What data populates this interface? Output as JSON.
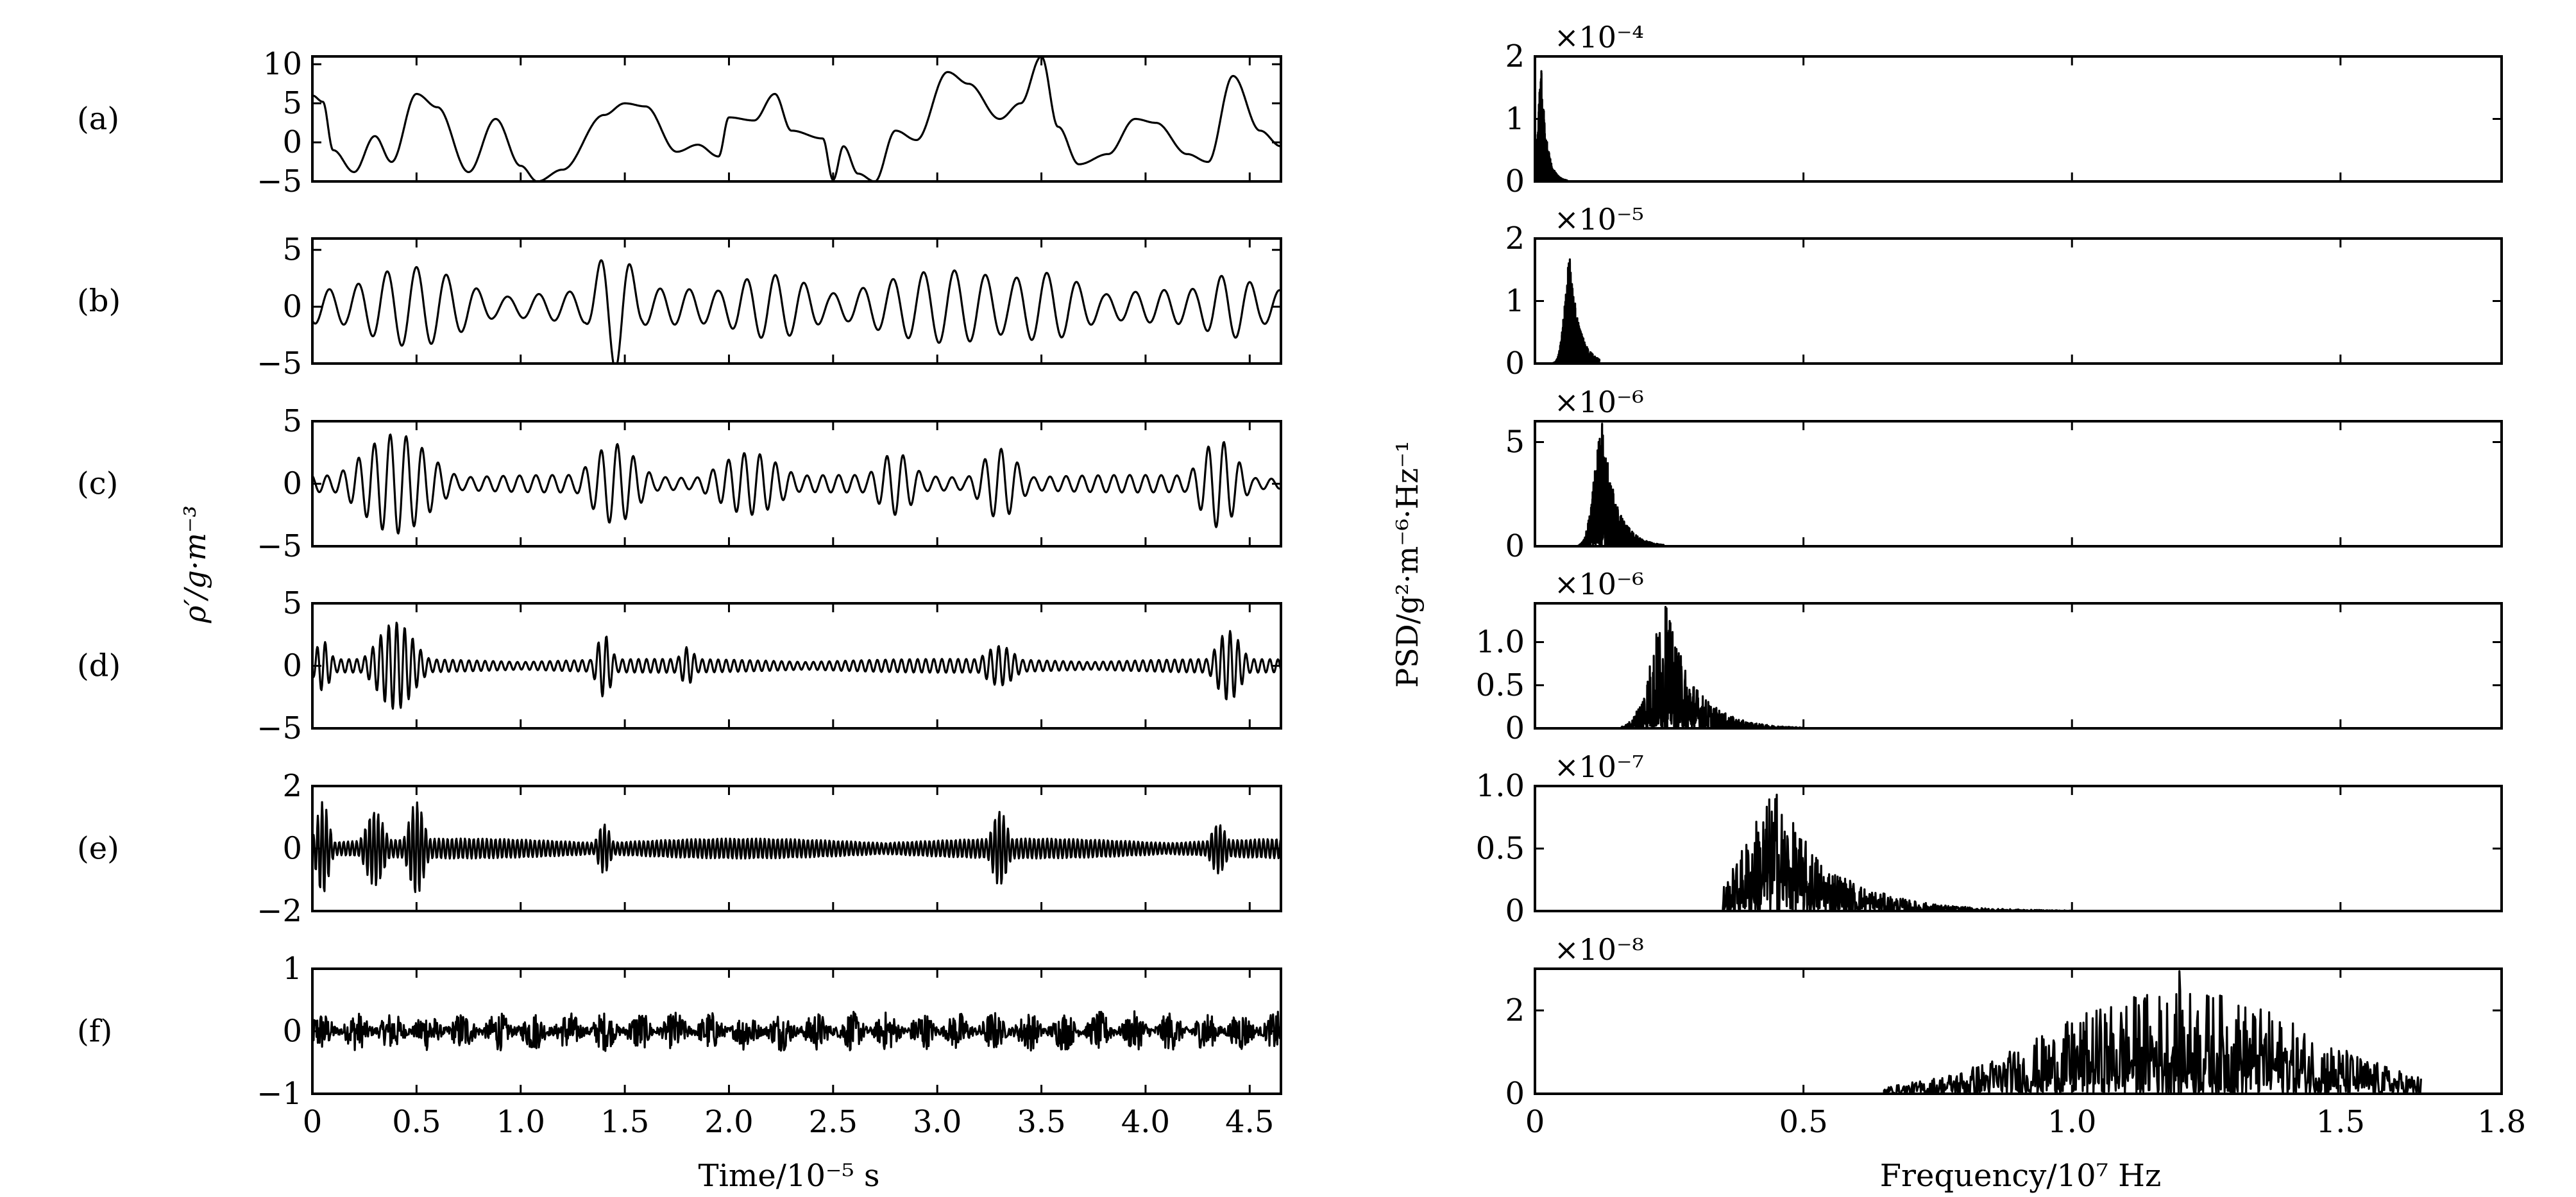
{
  "figure": {
    "left_ylabel": "ρ′/g·m⁻³",
    "left_xlabel": "Time/10⁻⁵ s",
    "right_ylabel": "PSD/g²·m⁻⁶·Hz⁻¹",
    "right_xlabel": "Frequency/10⁷ Hz",
    "panel_labels": [
      "(a)",
      "(b)",
      "(c)",
      "(d)",
      "(e)",
      "(f)"
    ]
  },
  "chart_data": [
    {
      "type": "line",
      "label": "(a)",
      "x_range": [
        0,
        4.65
      ],
      "ylim": [
        -5,
        11
      ],
      "yticks": [
        "10",
        "5",
        "0",
        "−5"
      ],
      "ytick_values": [
        10,
        5,
        0,
        -5
      ],
      "series": [
        {
          "keypoints": [
            [
              0,
              6
            ],
            [
              0.05,
              5.2
            ],
            [
              0.1,
              -1
            ],
            [
              0.2,
              -3.8
            ],
            [
              0.3,
              0.8
            ],
            [
              0.38,
              -2.5
            ],
            [
              0.5,
              6.2
            ],
            [
              0.6,
              4.5
            ],
            [
              0.75,
              -3.8
            ],
            [
              0.88,
              3
            ],
            [
              1.0,
              -3
            ],
            [
              1.08,
              -5
            ],
            [
              1.2,
              -3.5
            ],
            [
              1.4,
              3.5
            ],
            [
              1.5,
              5
            ],
            [
              1.6,
              4.6
            ],
            [
              1.75,
              -1.2
            ],
            [
              1.85,
              -0.3
            ],
            [
              1.95,
              -1.8
            ],
            [
              2.0,
              3.2
            ],
            [
              2.12,
              2.8
            ],
            [
              2.22,
              6.2
            ],
            [
              2.3,
              1.5
            ],
            [
              2.45,
              0.5
            ],
            [
              2.5,
              -4.8
            ],
            [
              2.55,
              -0.5
            ],
            [
              2.62,
              -4
            ],
            [
              2.7,
              -5
            ],
            [
              2.8,
              1.5
            ],
            [
              2.9,
              0.3
            ],
            [
              3.05,
              9
            ],
            [
              3.15,
              7.5
            ],
            [
              3.3,
              3
            ],
            [
              3.4,
              5
            ],
            [
              3.5,
              11
            ],
            [
              3.58,
              2
            ],
            [
              3.68,
              -2.8
            ],
            [
              3.82,
              -1.5
            ],
            [
              3.95,
              3
            ],
            [
              4.05,
              2.5
            ],
            [
              4.2,
              -1.5
            ],
            [
              4.3,
              -2.5
            ],
            [
              4.42,
              8.5
            ],
            [
              4.55,
              1.5
            ],
            [
              4.65,
              -0.5
            ]
          ],
          "wiggle_amp": 0.3
        }
      ],
      "xaxis": "shared"
    },
    {
      "type": "line",
      "label": "(b)",
      "x_range": [
        0,
        4.65
      ],
      "ylim": [
        -5,
        6
      ],
      "yticks": [
        "5",
        "0",
        "−5"
      ],
      "ytick_values": [
        5,
        0,
        -5
      ],
      "series": [
        {
          "freq": 7.0,
          "bursts": [
            [
              0.48,
              0.35,
              3.5
            ],
            [
              1.45,
              0.12,
              5.5
            ],
            [
              2.2,
              0.3,
              2.8
            ],
            [
              3.05,
              0.5,
              3.2
            ],
            [
              3.5,
              0.3,
              3
            ],
            [
              4.4,
              0.2,
              2.8
            ]
          ],
          "base_amp": 1.6
        }
      ]
    },
    {
      "type": "line",
      "label": "(c)",
      "x_range": [
        0,
        4.65
      ],
      "ylim": [
        -5,
        5
      ],
      "yticks": [
        "5",
        "0",
        "−5"
      ],
      "ytick_values": [
        5,
        0,
        -5
      ],
      "series": [
        {
          "freq": 13.0,
          "bursts": [
            [
              0.4,
              0.22,
              4
            ],
            [
              1.45,
              0.15,
              3.2
            ],
            [
              2.1,
              0.2,
              2.5
            ],
            [
              2.8,
              0.12,
              2.5
            ],
            [
              3.3,
              0.12,
              2.8
            ],
            [
              4.35,
              0.12,
              3.5
            ]
          ],
          "base_amp": 0.7
        }
      ]
    },
    {
      "type": "line",
      "label": "(d)",
      "x_range": [
        0,
        4.65
      ],
      "ylim": [
        -5,
        5
      ],
      "yticks": [
        "5",
        "0",
        "−5"
      ],
      "ytick_values": [
        5,
        0,
        -5
      ],
      "series": [
        {
          "freq": 26.0,
          "bursts": [
            [
              0.4,
              0.12,
              3.5
            ],
            [
              0.05,
              0.05,
              2
            ],
            [
              1.4,
              0.05,
              2.5
            ],
            [
              1.8,
              0.05,
              1.5
            ],
            [
              3.3,
              0.1,
              1.6
            ],
            [
              4.4,
              0.08,
              2.8
            ]
          ],
          "base_amp": 0.55
        }
      ]
    },
    {
      "type": "line",
      "label": "(e)",
      "x_range": [
        0,
        4.65
      ],
      "ylim": [
        -2,
        2
      ],
      "yticks": [
        "2",
        "0",
        "−2"
      ],
      "ytick_values": [
        2,
        0,
        -2
      ],
      "series": [
        {
          "freq": 48.0,
          "bursts": [
            [
              0.05,
              0.04,
              1.5
            ],
            [
              0.3,
              0.06,
              1.2
            ],
            [
              0.5,
              0.05,
              1.5
            ],
            [
              1.4,
              0.04,
              0.8
            ],
            [
              3.3,
              0.05,
              1.2
            ],
            [
              4.35,
              0.05,
              0.8
            ]
          ],
          "base_amp": 0.32
        }
      ]
    },
    {
      "type": "line",
      "label": "(f)",
      "x_range": [
        0,
        4.65
      ],
      "ylim": [
        -1,
        1
      ],
      "yticks": [
        "1",
        "0",
        "−1"
      ],
      "ytick_values": [
        1,
        0,
        -1
      ],
      "xticks": [
        "0",
        "0.5",
        "1.0",
        "1.5",
        "2.0",
        "2.5",
        "3.0",
        "3.5",
        "4.0",
        "4.5"
      ],
      "xtick_values": [
        0,
        0.5,
        1.0,
        1.5,
        2.0,
        2.5,
        3.0,
        3.5,
        4.0,
        4.5
      ],
      "series": [
        {
          "noise_amp": 0.32
        }
      ]
    },
    {
      "type": "line",
      "label": "(a) PSD",
      "multiplier": "×10⁻⁴",
      "xlim": [
        0,
        1.8
      ],
      "ylim": [
        0,
        2
      ],
      "yticks": [
        "2",
        "1",
        "0"
      ],
      "ytick_values": [
        2,
        1,
        0
      ],
      "series": [
        {
          "peak_center": 0.012,
          "peak_width": 0.012,
          "peak_max": 1.8,
          "extent": [
            0,
            0.06
          ]
        }
      ]
    },
    {
      "type": "line",
      "label": "(b) PSD",
      "multiplier": "×10⁻⁵",
      "xlim": [
        0,
        1.8
      ],
      "ylim": [
        0,
        2
      ],
      "yticks": [
        "2",
        "1",
        "0"
      ],
      "ytick_values": [
        2,
        1,
        0
      ],
      "series": [
        {
          "peak_center": 0.065,
          "peak_width": 0.02,
          "peak_max": 1.7,
          "extent": [
            0.03,
            0.12
          ]
        }
      ]
    },
    {
      "type": "line",
      "label": "(c) PSD",
      "multiplier": "×10⁻⁶",
      "xlim": [
        0,
        1.8
      ],
      "ylim": [
        0,
        6
      ],
      "yticks": [
        "5",
        "0"
      ],
      "ytick_values": [
        5,
        0
      ],
      "series": [
        {
          "peak_center": 0.125,
          "peak_width": 0.03,
          "peak_max": 6.0,
          "extent": [
            0.08,
            0.24
          ]
        }
      ]
    },
    {
      "type": "line",
      "label": "(d) PSD",
      "multiplier": "×10⁻⁶",
      "xlim": [
        0,
        1.8
      ],
      "ylim": [
        0,
        1.45
      ],
      "yticks": [
        "1.0",
        "0.5",
        "0"
      ],
      "ytick_values": [
        1.0,
        0.5,
        0
      ],
      "series": [
        {
          "peak_center": 0.245,
          "peak_width": 0.06,
          "peak_max": 1.42,
          "extent": [
            0.16,
            0.5
          ]
        }
      ]
    },
    {
      "type": "line",
      "label": "(e) PSD",
      "multiplier": "×10⁻⁷",
      "xlim": [
        0,
        1.8
      ],
      "ylim": [
        0,
        1.0
      ],
      "yticks": [
        "1.0",
        "0.5",
        "0"
      ],
      "ytick_values": [
        1.0,
        0.5,
        0
      ],
      "series": [
        {
          "peak_center": 0.45,
          "peak_width": 0.12,
          "peak_max": 0.95,
          "extent": [
            0.35,
            1.0
          ]
        }
      ]
    },
    {
      "type": "line",
      "label": "(f) PSD",
      "multiplier": "×10⁻⁸",
      "xlim": [
        0,
        1.8
      ],
      "ylim": [
        0,
        3
      ],
      "yticks": [
        "2",
        "0"
      ],
      "ytick_values": [
        2,
        0
      ],
      "xticks": [
        "0",
        "0.5",
        "1.0",
        "1.5",
        "1.8"
      ],
      "xtick_values": [
        0,
        0.5,
        1.0,
        1.5,
        1.8
      ],
      "series": [
        {
          "peak_center": 1.2,
          "peak_width": 0.35,
          "peak_max": 3.0,
          "extent": [
            0.65,
            1.65
          ]
        }
      ]
    }
  ]
}
